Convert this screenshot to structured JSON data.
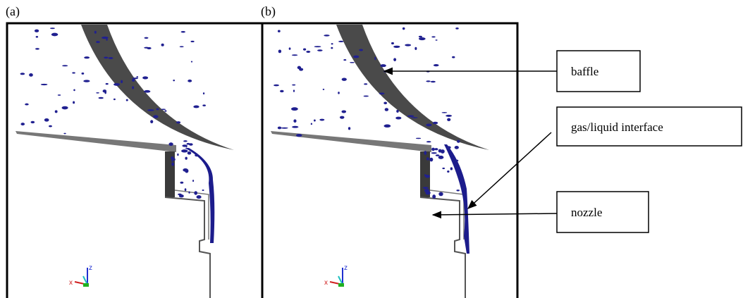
{
  "panels": [
    {
      "label": "(a)",
      "triad": {
        "x": "x",
        "z": "z"
      }
    },
    {
      "label": "(b)",
      "triad": {
        "x": "x",
        "z": "z"
      }
    }
  ],
  "annotations": [
    {
      "text": "baffle"
    },
    {
      "text": "gas/liquid interface"
    },
    {
      "text": "nozzle"
    }
  ]
}
